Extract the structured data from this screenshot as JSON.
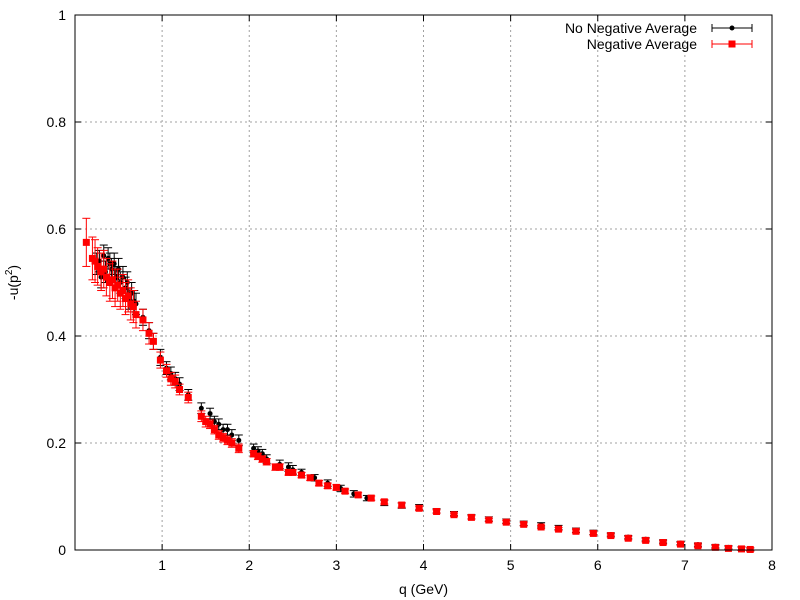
{
  "chart_data": {
    "type": "scatter",
    "title": "",
    "xlabel": "q (GeV)",
    "ylabel": {
      "base": "-u(p",
      "sup": "2",
      "close": ")"
    },
    "xlim": [
      0,
      8
    ],
    "ylim": [
      0,
      1
    ],
    "xticks": [
      "1",
      "2",
      "3",
      "4",
      "5",
      "6",
      "7",
      "8"
    ],
    "yticks": [
      "0",
      "0.2",
      "0.4",
      "0.6",
      "0.8",
      "1"
    ],
    "grid": true,
    "legend_position": "top-right",
    "series": [
      {
        "name": "No Negative Average",
        "color": "#000000",
        "marker": "small-dot",
        "points": [
          [
            0.25,
            0.535,
            0.02
          ],
          [
            0.28,
            0.54,
            0.02
          ],
          [
            0.3,
            0.51,
            0.02
          ],
          [
            0.33,
            0.55,
            0.02
          ],
          [
            0.35,
            0.52,
            0.02
          ],
          [
            0.38,
            0.545,
            0.02
          ],
          [
            0.4,
            0.535,
            0.02
          ],
          [
            0.42,
            0.525,
            0.02
          ],
          [
            0.45,
            0.535,
            0.02
          ],
          [
            0.47,
            0.51,
            0.02
          ],
          [
            0.5,
            0.525,
            0.02
          ],
          [
            0.52,
            0.5,
            0.02
          ],
          [
            0.55,
            0.51,
            0.02
          ],
          [
            0.58,
            0.49,
            0.02
          ],
          [
            0.6,
            0.5,
            0.02
          ],
          [
            0.62,
            0.47,
            0.02
          ],
          [
            0.65,
            0.48,
            0.02
          ],
          [
            0.68,
            0.465,
            0.02
          ],
          [
            0.7,
            0.46,
            0.02
          ],
          [
            0.78,
            0.435,
            0.015
          ],
          [
            0.85,
            0.41,
            0.015
          ],
          [
            0.9,
            0.39,
            0.015
          ],
          [
            0.98,
            0.36,
            0.015
          ],
          [
            1.05,
            0.34,
            0.012
          ],
          [
            1.1,
            0.33,
            0.012
          ],
          [
            1.15,
            0.32,
            0.012
          ],
          [
            1.2,
            0.31,
            0.012
          ],
          [
            1.3,
            0.29,
            0.01
          ],
          [
            1.45,
            0.265,
            0.01
          ],
          [
            1.55,
            0.255,
            0.01
          ],
          [
            1.6,
            0.24,
            0.01
          ],
          [
            1.65,
            0.235,
            0.01
          ],
          [
            1.7,
            0.225,
            0.01
          ],
          [
            1.75,
            0.225,
            0.01
          ],
          [
            1.8,
            0.215,
            0.01
          ],
          [
            1.88,
            0.205,
            0.01
          ],
          [
            2.05,
            0.19,
            0.008
          ],
          [
            2.1,
            0.185,
            0.008
          ],
          [
            2.15,
            0.18,
            0.008
          ],
          [
            2.2,
            0.17,
            0.008
          ],
          [
            2.35,
            0.16,
            0.008
          ],
          [
            2.45,
            0.155,
            0.008
          ],
          [
            2.5,
            0.15,
            0.008
          ],
          [
            2.6,
            0.145,
            0.006
          ],
          [
            2.75,
            0.135,
            0.006
          ],
          [
            2.9,
            0.125,
            0.006
          ],
          [
            3.05,
            0.115,
            0.006
          ],
          [
            3.2,
            0.105,
            0.006
          ],
          [
            3.35,
            0.097,
            0.005
          ],
          [
            3.55,
            0.088,
            0.005
          ],
          [
            3.75,
            0.083,
            0.005
          ],
          [
            3.95,
            0.08,
            0.005
          ],
          [
            4.15,
            0.073,
            0.004
          ],
          [
            4.35,
            0.068,
            0.004
          ],
          [
            4.55,
            0.062,
            0.004
          ],
          [
            4.75,
            0.058,
            0.004
          ],
          [
            4.95,
            0.054,
            0.004
          ],
          [
            5.15,
            0.05,
            0.004
          ],
          [
            5.35,
            0.047,
            0.004
          ],
          [
            5.55,
            0.042,
            0.004
          ],
          [
            5.75,
            0.037,
            0.004
          ],
          [
            5.95,
            0.033,
            0.004
          ],
          [
            6.15,
            0.029,
            0.003
          ],
          [
            6.35,
            0.024,
            0.003
          ],
          [
            6.55,
            0.02,
            0.003
          ],
          [
            6.75,
            0.016,
            0.003
          ],
          [
            6.95,
            0.013,
            0.003
          ],
          [
            7.15,
            0.01,
            0.003
          ],
          [
            7.35,
            0.007,
            0.003
          ],
          [
            7.5,
            0.005,
            0.003
          ],
          [
            7.65,
            0.003,
            0.003
          ],
          [
            7.75,
            0.001,
            0.003
          ]
        ]
      },
      {
        "name": "Negative Average",
        "color": "#ff0000",
        "marker": "square",
        "points": [
          [
            0.13,
            0.575,
            0.045
          ],
          [
            0.2,
            0.545,
            0.04
          ],
          [
            0.23,
            0.54,
            0.04
          ],
          [
            0.26,
            0.53,
            0.035
          ],
          [
            0.3,
            0.52,
            0.035
          ],
          [
            0.33,
            0.525,
            0.035
          ],
          [
            0.36,
            0.51,
            0.035
          ],
          [
            0.4,
            0.5,
            0.035
          ],
          [
            0.43,
            0.505,
            0.035
          ],
          [
            0.46,
            0.49,
            0.035
          ],
          [
            0.49,
            0.495,
            0.03
          ],
          [
            0.52,
            0.48,
            0.03
          ],
          [
            0.55,
            0.485,
            0.03
          ],
          [
            0.58,
            0.47,
            0.03
          ],
          [
            0.61,
            0.475,
            0.03
          ],
          [
            0.64,
            0.46,
            0.03
          ],
          [
            0.67,
            0.455,
            0.03
          ],
          [
            0.7,
            0.44,
            0.025
          ],
          [
            0.78,
            0.43,
            0.02
          ],
          [
            0.85,
            0.405,
            0.02
          ],
          [
            0.9,
            0.39,
            0.015
          ],
          [
            0.98,
            0.355,
            0.015
          ],
          [
            1.05,
            0.335,
            0.012
          ],
          [
            1.1,
            0.32,
            0.012
          ],
          [
            1.15,
            0.315,
            0.012
          ],
          [
            1.2,
            0.3,
            0.01
          ],
          [
            1.3,
            0.285,
            0.01
          ],
          [
            1.45,
            0.25,
            0.01
          ],
          [
            1.5,
            0.24,
            0.01
          ],
          [
            1.55,
            0.235,
            0.008
          ],
          [
            1.6,
            0.225,
            0.008
          ],
          [
            1.65,
            0.215,
            0.008
          ],
          [
            1.7,
            0.21,
            0.008
          ],
          [
            1.75,
            0.205,
            0.008
          ],
          [
            1.8,
            0.2,
            0.008
          ],
          [
            1.88,
            0.19,
            0.008
          ],
          [
            2.05,
            0.18,
            0.006
          ],
          [
            2.1,
            0.175,
            0.006
          ],
          [
            2.15,
            0.17,
            0.006
          ],
          [
            2.2,
            0.165,
            0.006
          ],
          [
            2.3,
            0.155,
            0.006
          ],
          [
            2.35,
            0.155,
            0.006
          ],
          [
            2.45,
            0.145,
            0.005
          ],
          [
            2.5,
            0.145,
            0.005
          ],
          [
            2.6,
            0.14,
            0.005
          ],
          [
            2.7,
            0.135,
            0.005
          ],
          [
            2.8,
            0.125,
            0.005
          ],
          [
            2.9,
            0.12,
            0.005
          ],
          [
            3.0,
            0.117,
            0.005
          ],
          [
            3.1,
            0.11,
            0.004
          ],
          [
            3.25,
            0.103,
            0.004
          ],
          [
            3.4,
            0.097,
            0.004
          ],
          [
            3.55,
            0.09,
            0.004
          ],
          [
            3.75,
            0.084,
            0.004
          ],
          [
            3.95,
            0.078,
            0.004
          ],
          [
            4.15,
            0.072,
            0.003
          ],
          [
            4.35,
            0.066,
            0.003
          ],
          [
            4.55,
            0.061,
            0.003
          ],
          [
            4.75,
            0.056,
            0.003
          ],
          [
            4.95,
            0.052,
            0.003
          ],
          [
            5.15,
            0.048,
            0.003
          ],
          [
            5.35,
            0.043,
            0.003
          ],
          [
            5.55,
            0.039,
            0.003
          ],
          [
            5.75,
            0.035,
            0.003
          ],
          [
            5.95,
            0.031,
            0.003
          ],
          [
            6.15,
            0.027,
            0.003
          ],
          [
            6.35,
            0.022,
            0.003
          ],
          [
            6.55,
            0.018,
            0.003
          ],
          [
            6.75,
            0.014,
            0.003
          ],
          [
            6.95,
            0.011,
            0.003
          ],
          [
            7.15,
            0.008,
            0.003
          ],
          [
            7.35,
            0.005,
            0.003
          ],
          [
            7.5,
            0.003,
            0.003
          ],
          [
            7.65,
            0.002,
            0.003
          ],
          [
            7.75,
            0.001,
            0.003
          ]
        ]
      }
    ]
  }
}
